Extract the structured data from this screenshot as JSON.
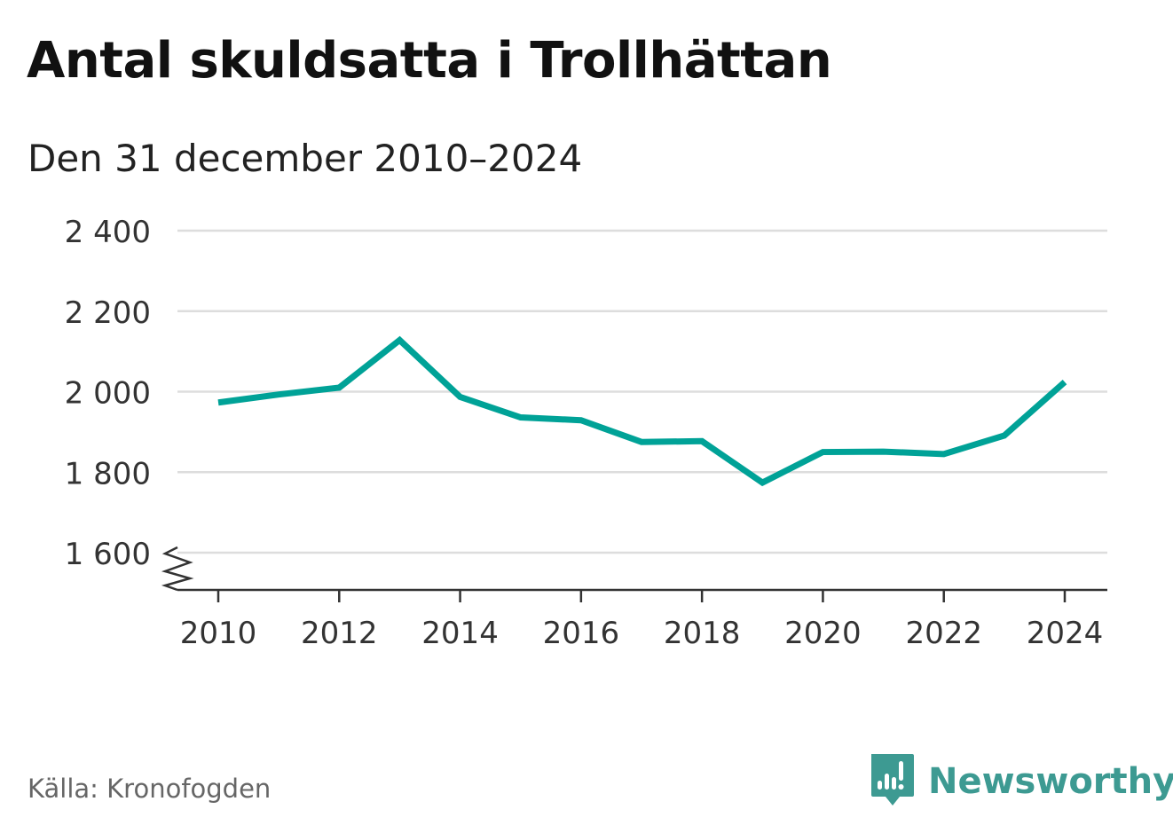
{
  "header": {
    "title": "Antal skuldsatta i Trollhättan",
    "subtitle": "Den 31 december 2010–2024"
  },
  "footer": {
    "source": "Källa: Kronofogden",
    "logo_text": "Newsworthy",
    "logo_icon": "bar-chart-speech-bubble-icon"
  },
  "colors": {
    "series": "#00a297",
    "grid": "#dddddd",
    "axis": "#333333",
    "text": "#333333",
    "logo": "#3d9a92"
  },
  "chart_data": {
    "type": "line",
    "title": "Antal skuldsatta i Trollhättan",
    "subtitle": "Den 31 december 2010–2024",
    "xlabel": "",
    "ylabel": "",
    "x": [
      2010,
      2011,
      2012,
      2013,
      2014,
      2015,
      2016,
      2017,
      2018,
      2019,
      2020,
      2021,
      2022,
      2023,
      2024
    ],
    "series": [
      {
        "values": [
          1973,
          1993,
          2010,
          2128,
          1987,
          1936,
          1929,
          1875,
          1877,
          1774,
          1850,
          1851,
          1845,
          1891,
          2024
        ]
      }
    ],
    "ylim": [
      1600,
      2400
    ],
    "y_ticks": [
      1600,
      1800,
      2000,
      2200,
      2400
    ],
    "y_tick_labels": [
      "1 600",
      "1 800",
      "2 000",
      "2 200",
      "2 400"
    ],
    "x_ticks": [
      2010,
      2012,
      2014,
      2016,
      2018,
      2020,
      2022,
      2024
    ],
    "x_tick_labels": [
      "2010",
      "2012",
      "2014",
      "2016",
      "2018",
      "2020",
      "2022",
      "2024"
    ],
    "grid": true,
    "axis_break": true,
    "legend": "none"
  }
}
